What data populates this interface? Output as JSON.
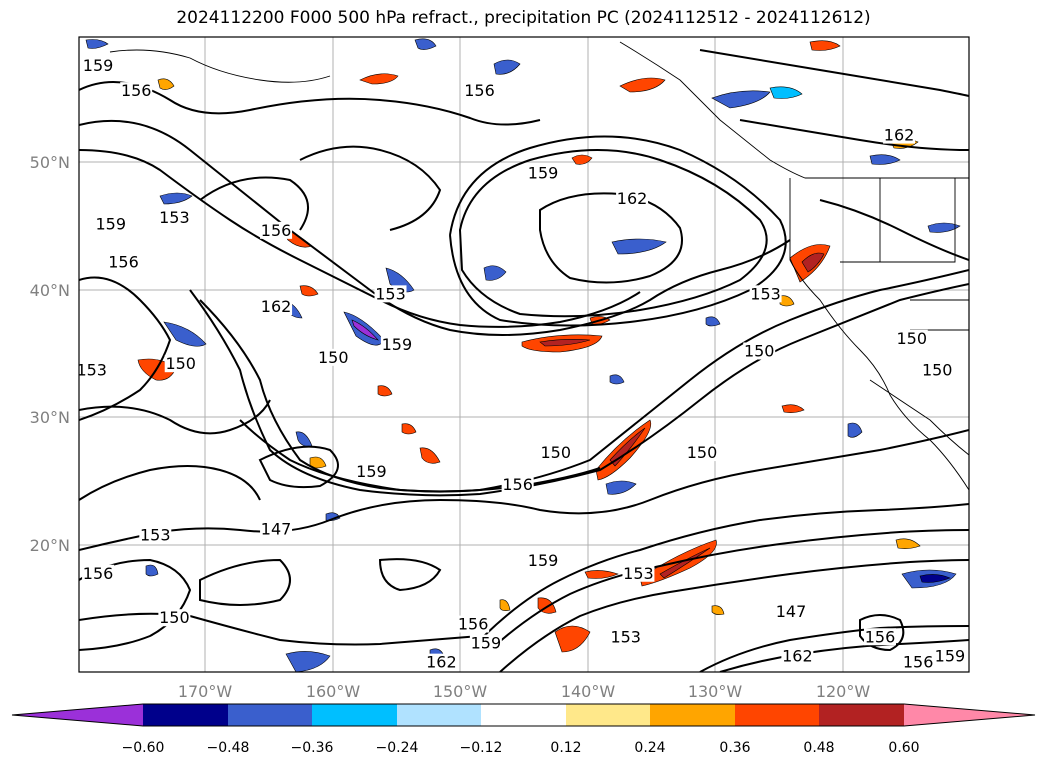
{
  "title": "2024112200 F000 500 hPa refract., precipitation PC (2024112512 - 2024112612)",
  "lat_labels": [
    "50°N",
    "40°N",
    "30°N",
    "20°N"
  ],
  "lon_labels": [
    "170°W",
    "160°W",
    "150°W",
    "140°W",
    "130°W",
    "120°W"
  ],
  "colorbar": {
    "tick_labels": [
      "−0.60",
      "−0.48",
      "−0.36",
      "−0.24",
      "−0.12",
      "0.12",
      "0.24",
      "0.36",
      "0.48",
      "0.60"
    ],
    "colors": [
      "#9b30d9",
      "#00008b",
      "#3a5fcd",
      "#00bfff",
      "#b0e2ff",
      "#ffffff",
      "#ffe88a",
      "#ffa500",
      "#ff4500",
      "#b22222",
      "#ff88a8"
    ]
  },
  "contour_labels": [
    {
      "text": "159",
      "lon": -178.5,
      "lat": 57.5
    },
    {
      "text": "156",
      "lon": -175.5,
      "lat": 55.5
    },
    {
      "text": "156",
      "lon": -148.5,
      "lat": 55.5
    },
    {
      "text": "159",
      "lon": -143.5,
      "lat": 49.0
    },
    {
      "text": "162",
      "lon": -136.5,
      "lat": 47.0
    },
    {
      "text": "162",
      "lon": -115.5,
      "lat": 52.0
    },
    {
      "text": "153",
      "lon": -172.5,
      "lat": 45.5
    },
    {
      "text": "159",
      "lon": -177.5,
      "lat": 45.0
    },
    {
      "text": "156",
      "lon": -176.5,
      "lat": 42.0
    },
    {
      "text": "156",
      "lon": -164.5,
      "lat": 44.5
    },
    {
      "text": "162",
      "lon": -164.5,
      "lat": 38.5
    },
    {
      "text": "153",
      "lon": -155.5,
      "lat": 39.5
    },
    {
      "text": "159",
      "lon": -155.0,
      "lat": 35.5
    },
    {
      "text": "150",
      "lon": -160.0,
      "lat": 34.5
    },
    {
      "text": "150",
      "lon": -172.0,
      "lat": 34.0
    },
    {
      "text": "153",
      "lon": -179.0,
      "lat": 33.5
    },
    {
      "text": "153",
      "lon": -126.0,
      "lat": 39.5
    },
    {
      "text": "150",
      "lon": -126.5,
      "lat": 35.0
    },
    {
      "text": "150",
      "lon": -114.5,
      "lat": 36.0
    },
    {
      "text": "150",
      "lon": -112.5,
      "lat": 33.5
    },
    {
      "text": "150",
      "lon": -142.5,
      "lat": 27.0
    },
    {
      "text": "156",
      "lon": -145.5,
      "lat": 24.5
    },
    {
      "text": "159",
      "lon": -157.0,
      "lat": 25.5
    },
    {
      "text": "150",
      "lon": -131.0,
      "lat": 27.0
    },
    {
      "text": "147",
      "lon": -164.5,
      "lat": 21.0
    },
    {
      "text": "153",
      "lon": -174.0,
      "lat": 20.5
    },
    {
      "text": "156",
      "lon": -178.5,
      "lat": 17.5
    },
    {
      "text": "159",
      "lon": -143.5,
      "lat": 18.5
    },
    {
      "text": "153",
      "lon": -136.0,
      "lat": 17.5
    },
    {
      "text": "150",
      "lon": -172.5,
      "lat": 14.0
    },
    {
      "text": "147",
      "lon": -124.0,
      "lat": 14.5
    },
    {
      "text": "156",
      "lon": -149.0,
      "lat": 13.5
    },
    {
      "text": "159",
      "lon": -148.0,
      "lat": 12.0
    },
    {
      "text": "162",
      "lon": -151.5,
      "lat": 10.5
    },
    {
      "text": "153",
      "lon": -137.0,
      "lat": 12.5
    },
    {
      "text": "162",
      "lon": -123.5,
      "lat": 11.0
    },
    {
      "text": "156",
      "lon": -117.0,
      "lat": 12.5
    },
    {
      "text": "156",
      "lon": -114.0,
      "lat": 10.5
    },
    {
      "text": "159",
      "lon": -111.5,
      "lat": 11.0
    }
  ]
}
